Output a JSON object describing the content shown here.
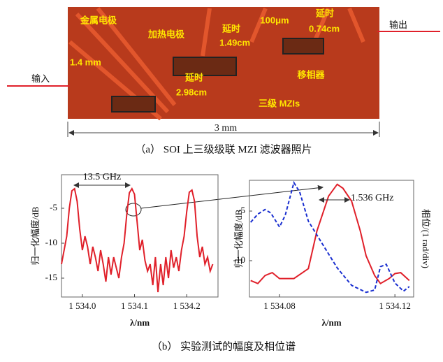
{
  "photo": {
    "labels": [
      "金属电极",
      "加热电极",
      "延时",
      "1.49cm",
      "100μm",
      "延时",
      "0.74cm",
      "输出",
      "1.4 mm",
      "输入",
      "延时",
      "2.98cm",
      "移相器",
      "三级 MZIs",
      "3 mm"
    ],
    "caption": "（a）  SOI 上三级级联 MZI 滤波器照片"
  },
  "chart_data": [
    {
      "type": "line",
      "ylabel": "归一化幅度/dB",
      "xlabel": "λ/nm",
      "annotations": [
        "13.5 GHz"
      ],
      "xlim": [
        1533.96,
        1534.26
      ],
      "ylim": [
        -17.7,
        -0.2
      ],
      "xticks": [
        {
          "value": 1534.0,
          "label": "1 534.0"
        },
        {
          "value": 1534.1,
          "label": "1 534.1"
        },
        {
          "value": 1534.2,
          "label": "1 534.2"
        }
      ],
      "yticks": [
        -5,
        -10,
        -15
      ],
      "x": [
        1533.96,
        1533.97,
        1533.975,
        1533.98,
        1533.985,
        1533.99,
        1533.995,
        1534.0,
        1534.005,
        1534.01,
        1534.015,
        1534.02,
        1534.025,
        1534.03,
        1534.035,
        1534.04,
        1534.045,
        1534.05,
        1534.055,
        1534.06,
        1534.065,
        1534.07,
        1534.075,
        1534.08,
        1534.085,
        1534.09,
        1534.095,
        1534.1,
        1534.105,
        1534.11,
        1534.115,
        1534.12,
        1534.125,
        1534.13,
        1534.135,
        1534.14,
        1534.145,
        1534.15,
        1534.155,
        1534.16,
        1534.165,
        1534.17,
        1534.175,
        1534.18,
        1534.185,
        1534.19,
        1534.195,
        1534.2,
        1534.205,
        1534.21,
        1534.215,
        1534.22,
        1534.225,
        1534.23,
        1534.235,
        1534.24,
        1534.245,
        1534.25
      ],
      "series": [
        {
          "color": "#e0202a",
          "values": [
            -13,
            -9,
            -5,
            -2.5,
            -2.2,
            -4,
            -8,
            -11,
            -9,
            -10.5,
            -13,
            -10.5,
            -12,
            -14,
            -11,
            -13,
            -15.5,
            -12,
            -14.5,
            -12,
            -13.5,
            -15,
            -12,
            -10,
            -6,
            -2.8,
            -2.2,
            -3,
            -7,
            -11,
            -9.5,
            -12.5,
            -14,
            -13,
            -16,
            -12,
            -17,
            -13,
            -16,
            -12,
            -15,
            -11,
            -13.5,
            -12,
            -14,
            -11,
            -9,
            -5.5,
            -2.7,
            -2.4,
            -4,
            -9,
            -12,
            -10.5,
            -13,
            -12,
            -14,
            -13
          ]
        }
      ]
    },
    {
      "type": "line",
      "ylabel": "归一化幅度/dB",
      "xlabel": "λ/nm",
      "y2label": "相位/(1 rad/div)",
      "annotations": [
        "1.536 GHz"
      ],
      "xlim": [
        1534.0696,
        1534.1265
      ],
      "ylim": [
        -13.66,
        -1.9
      ],
      "y2lim": [
        0,
        10
      ],
      "xticks": [
        {
          "value": 1534.08,
          "label": "1 534.08"
        },
        {
          "value": 1534.12,
          "label": "1 534.12"
        }
      ],
      "yticks": [
        -5,
        -10
      ],
      "x": [
        1534.07,
        1534.0725,
        1534.075,
        1534.0775,
        1534.08,
        1534.085,
        1534.09,
        1534.093,
        1534.097,
        1534.1,
        1534.102,
        1534.105,
        1534.108,
        1534.11,
        1534.113,
        1534.115,
        1534.118,
        1534.12,
        1534.122,
        1534.125
      ],
      "series": [
        {
          "color": "#e0202a",
          "values": [
            -12,
            -12.3,
            -11.5,
            -11.2,
            -11.8,
            -11.8,
            -10.8,
            -7,
            -3.5,
            -2.3,
            -2.7,
            -4,
            -7,
            -9.5,
            -11.5,
            -12.3,
            -11.8,
            -11.3,
            -11.2,
            -12
          ]
        }
      ],
      "x2": [
        1534.07,
        1534.0725,
        1534.075,
        1534.077,
        1534.08,
        1534.082,
        1534.085,
        1534.087,
        1534.09,
        1534.095,
        1534.1,
        1534.105,
        1534.11,
        1534.113,
        1534.115,
        1534.117,
        1534.12,
        1534.123,
        1534.125
      ],
      "series2": [
        {
          "color": "#1a2fd0",
          "dashed": true,
          "axis": "y2",
          "values": [
            6.4,
            7.1,
            7.5,
            7.2,
            6.0,
            7.0,
            9.8,
            9.0,
            6.5,
            4.5,
            2.5,
            1.0,
            0.4,
            0.6,
            2.6,
            2.8,
            1.2,
            0.5,
            0.9
          ]
        }
      ]
    }
  ],
  "caption_b": "（b）   实验测试的幅度及相位谱"
}
